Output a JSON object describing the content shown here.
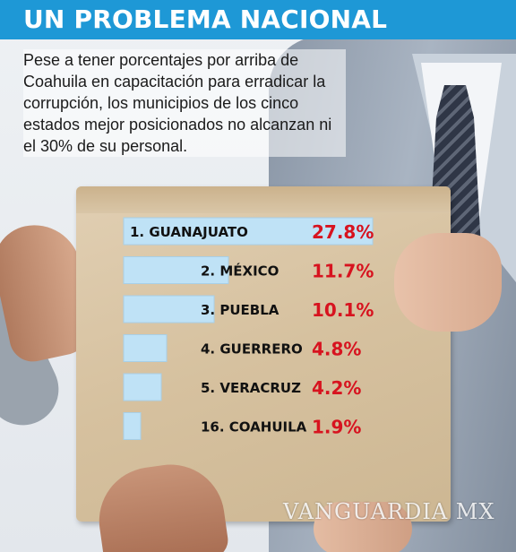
{
  "header": {
    "title": "UN PROBLEMA NACIONAL",
    "intro": "Pese a tener porcentajes por arriba de Coahuila en capacitación para erradicar la corrupción, los municipios de los cinco estados mejor posicionados no alcanzan ni el 30% de su personal."
  },
  "colors": {
    "header_bg": "#1e98d6",
    "bar_fill": "#bfe2f6",
    "value_text": "#d7131f"
  },
  "chart_data": {
    "type": "bar",
    "orientation": "horizontal",
    "categories": [
      "1. GUANAJUATO",
      "2. MÉXICO",
      "3. PUEBLA",
      "4. GUERRERO",
      "5. VERACRUZ",
      "16. COAHUILA"
    ],
    "values": [
      27.8,
      11.7,
      10.1,
      4.8,
      4.2,
      1.9
    ],
    "value_labels": [
      "27.8%",
      "11.7%",
      "10.1%",
      "4.8%",
      "4.2%",
      "1.9%"
    ],
    "title": "",
    "xlabel": "",
    "ylabel": "",
    "xlim": [
      0,
      27.8
    ],
    "grid": false,
    "legend": "none"
  },
  "watermark": "VANGUARDIA MX"
}
